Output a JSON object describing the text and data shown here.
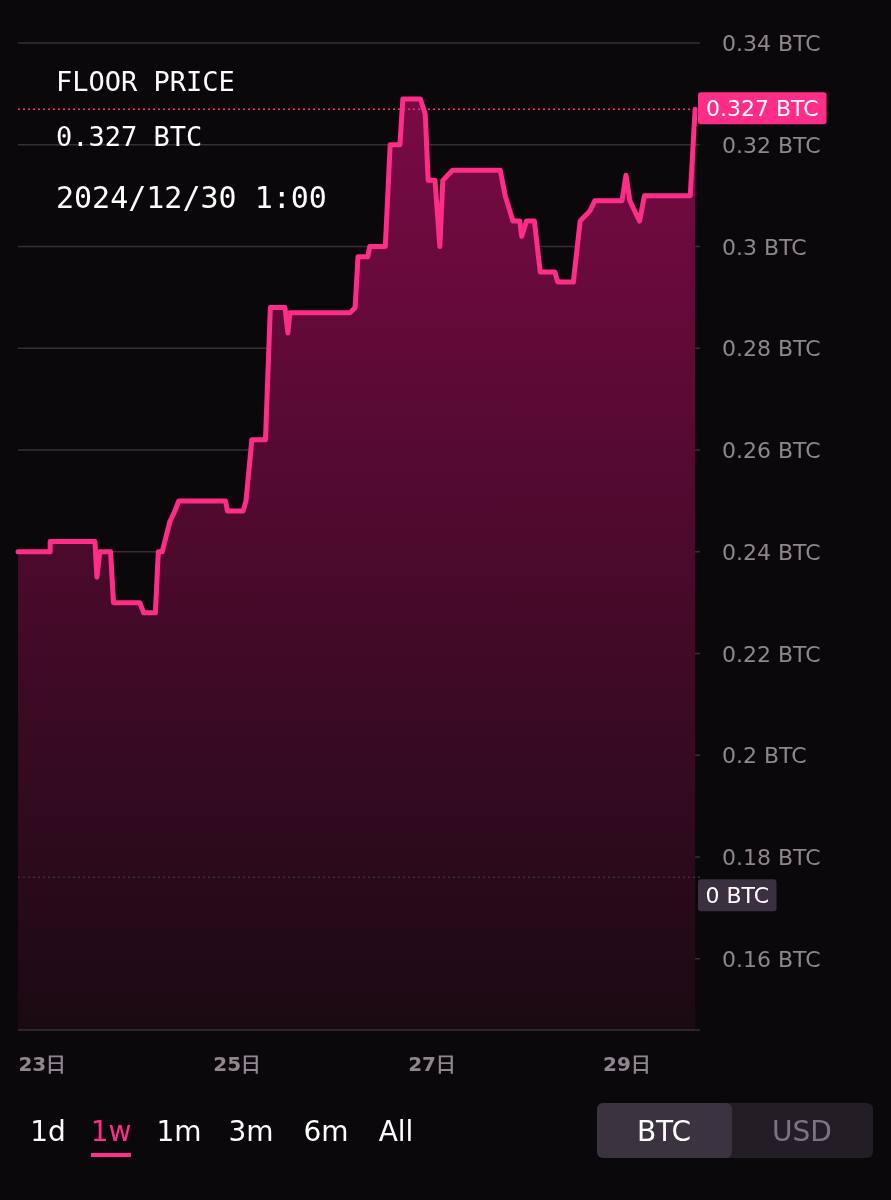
{
  "chart_data": {
    "type": "area",
    "title": "FLOOR PRICE",
    "subtitle": "0.327 BTC",
    "annotations": [
      "2024/12/30 1:00",
      "1d",
      "1w",
      "1m",
      "3m",
      "6m",
      "All",
      "BTC",
      "USD"
    ],
    "x": [
      22.75,
      23.08,
      23.08,
      23.54,
      23.56,
      23.59,
      23.7,
      23.73,
      24.0,
      24.04,
      24.16,
      24.19,
      24.23,
      24.31,
      24.36,
      24.4,
      24.88,
      24.9,
      25.06,
      25.09,
      25.15,
      25.29,
      25.34,
      25.49,
      25.52,
      25.54,
      26.16,
      26.21,
      26.24,
      26.34,
      26.36,
      26.52,
      26.57,
      26.67,
      26.7,
      26.88,
      26.93,
      26.96,
      27.03,
      27.08,
      27.11,
      27.21,
      27.7,
      27.75,
      27.83,
      27.9,
      27.92,
      27.97,
      28.05,
      28.11,
      28.26,
      28.29,
      28.45,
      28.52,
      28.62,
      28.67,
      28.95,
      28.99,
      29.03,
      29.13,
      29.18,
      29.65,
      29.7
    ],
    "series": [
      {
        "color": "#ff2d87",
        "values": [
          0.24,
          0.24,
          0.242,
          0.242,
          0.235,
          0.24,
          0.24,
          0.23,
          0.23,
          0.228,
          0.228,
          0.24,
          0.24,
          0.246,
          0.248,
          0.25,
          0.25,
          0.248,
          0.248,
          0.25,
          0.262,
          0.262,
          0.288,
          0.288,
          0.283,
          0.287,
          0.287,
          0.288,
          0.298,
          0.298,
          0.3,
          0.3,
          0.32,
          0.32,
          0.329,
          0.329,
          0.326,
          0.313,
          0.313,
          0.3,
          0.313,
          0.315,
          0.315,
          0.31,
          0.305,
          0.305,
          0.302,
          0.305,
          0.305,
          0.295,
          0.295,
          0.293,
          0.293,
          0.305,
          0.307,
          0.309,
          0.309,
          0.314,
          0.309,
          0.305,
          0.31,
          0.31,
          0.327
        ]
      }
    ],
    "xlim": [
      22.75,
      29.75
    ],
    "ylim": [
      0.146,
      0.34
    ],
    "xticks": [
      {
        "value": 23,
        "label": "23日"
      },
      {
        "value": 25,
        "label": "25日"
      },
      {
        "value": 27,
        "label": "27日"
      },
      {
        "value": 29,
        "label": "29日"
      }
    ],
    "yticks": [
      {
        "value": 0.16,
        "label": "0.16 BTC"
      },
      {
        "value": 0.18,
        "label": "0.18 BTC"
      },
      {
        "value": 0.2,
        "label": "0.2 BTC"
      },
      {
        "value": 0.22,
        "label": "0.22 BTC"
      },
      {
        "value": 0.24,
        "label": "0.24 BTC"
      },
      {
        "value": 0.26,
        "label": "0.26 BTC"
      },
      {
        "value": 0.28,
        "label": "0.28 BTC"
      },
      {
        "value": 0.3,
        "label": "0.3 BTC"
      },
      {
        "value": 0.32,
        "label": "0.32 BTC"
      },
      {
        "value": 0.34,
        "label": "0.34 BTC"
      }
    ],
    "grid": "y",
    "ref_lines": [
      {
        "axis": "y",
        "value": 0.327,
        "label": "0.327 BTC",
        "color": "#ff2d87",
        "line_style": "dotted"
      },
      {
        "axis": "y",
        "value": 0.176,
        "label": "0 BTC",
        "color": "#3a3040",
        "line_style": "dotted"
      }
    ]
  }
}
